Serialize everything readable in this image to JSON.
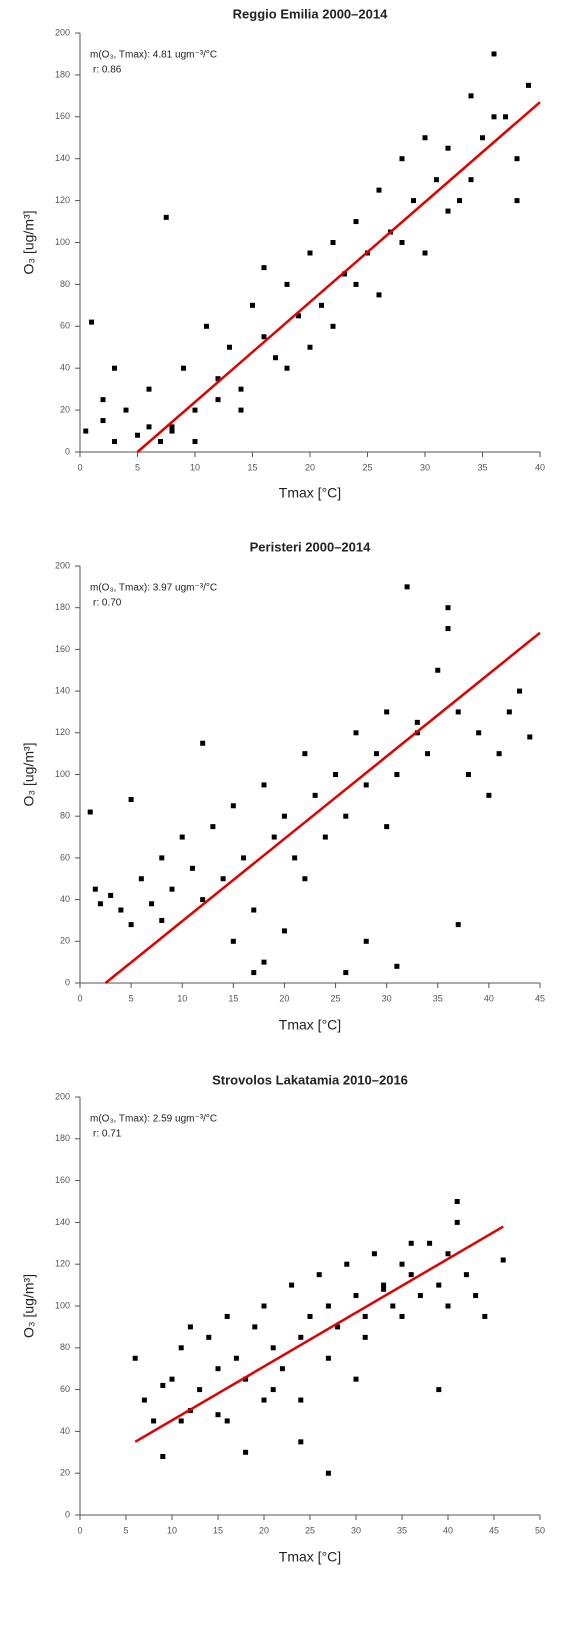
{
  "chart_data": [
    {
      "type": "scatter",
      "title": "Reggio Emilia 2000–2014",
      "xlabel": "Tmax [°C]",
      "ylabel": "O₃ [ug/m³]",
      "annotations": [
        "m(O₃, Tmax): 4.81 ugm⁻³/°C",
        "r: 0.86"
      ],
      "color": "#000000",
      "x": [
        0.5,
        1,
        2,
        3,
        4,
        5,
        6,
        7,
        8,
        9,
        10,
        11,
        12,
        13,
        14,
        15,
        16,
        17,
        18,
        19,
        20,
        21,
        22,
        23,
        24,
        25,
        26,
        27,
        28,
        29,
        30,
        31,
        32,
        33,
        34,
        35,
        36,
        37,
        38,
        39,
        2,
        6,
        10,
        14,
        18,
        22,
        26,
        30,
        34,
        38,
        3,
        8,
        12,
        16,
        20,
        24,
        28,
        32,
        36,
        7.5
      ],
      "values": [
        10,
        62,
        15,
        5,
        20,
        8,
        30,
        5,
        12,
        40,
        20,
        60,
        35,
        50,
        30,
        70,
        55,
        45,
        80,
        65,
        95,
        70,
        100,
        85,
        110,
        95,
        125,
        105,
        140,
        120,
        150,
        130,
        145,
        120,
        170,
        150,
        190,
        160,
        140,
        175,
        25,
        12,
        5,
        20,
        40,
        60,
        75,
        95,
        130,
        120,
        40,
        10,
        25,
        88,
        50,
        80,
        100,
        115,
        160,
        112
      ],
      "fit": {
        "x": [
          5,
          40
        ],
        "values": [
          0,
          167
        ],
        "color": "#e00000"
      },
      "xlim": [
        0,
        40
      ],
      "ylim": [
        0,
        200
      ],
      "xticks": [
        0,
        5,
        10,
        15,
        20,
        25,
        30,
        35,
        40
      ],
      "yticks": [
        0,
        20,
        40,
        60,
        80,
        100,
        120,
        140,
        160,
        180,
        200
      ]
    },
    {
      "type": "scatter",
      "title": "Peristeri 2000–2014",
      "xlabel": "Tmax [°C]",
      "ylabel": "O₃ [ug/m³]",
      "annotations": [
        "m(O₃, Tmax): 3.97 ugm⁻³/°C",
        "r: 0.70"
      ],
      "color": "#000000",
      "x": [
        1,
        1.5,
        2,
        3,
        4,
        5,
        6,
        7,
        8,
        9,
        10,
        11,
        12,
        13,
        14,
        15,
        16,
        17,
        18,
        19,
        20,
        21,
        22,
        23,
        24,
        25,
        26,
        27,
        28,
        29,
        30,
        31,
        32,
        33,
        34,
        35,
        36,
        37,
        38,
        39,
        40,
        41,
        42,
        43,
        44,
        5,
        8,
        12,
        15,
        18,
        22,
        26,
        30,
        33,
        36,
        20,
        28,
        37,
        31,
        17
      ],
      "values": [
        82,
        45,
        38,
        42,
        35,
        28,
        50,
        38,
        60,
        45,
        70,
        55,
        40,
        75,
        50,
        85,
        60,
        35,
        95,
        70,
        80,
        60,
        110,
        90,
        70,
        100,
        80,
        120,
        95,
        110,
        130,
        100,
        190,
        120,
        110,
        150,
        180,
        130,
        100,
        120,
        90,
        110,
        130,
        140,
        118,
        88,
        30,
        115,
        20,
        10,
        50,
        5,
        75,
        125,
        170,
        25,
        20,
        28,
        8,
        5
      ],
      "fit": {
        "x": [
          2.5,
          45
        ],
        "values": [
          0,
          168
        ],
        "color": "#e00000"
      },
      "xlim": [
        0,
        45
      ],
      "ylim": [
        0,
        200
      ],
      "xticks": [
        0,
        5,
        10,
        15,
        20,
        25,
        30,
        35,
        40,
        45
      ],
      "yticks": [
        0,
        20,
        40,
        60,
        80,
        100,
        120,
        140,
        160,
        180,
        200
      ]
    },
    {
      "type": "scatter",
      "title": "Strovolos Lakatamia 2010–2016",
      "xlabel": "Tmax [°C]",
      "ylabel": "O₃ [ug/m³]",
      "annotations": [
        "m(O₃, Tmax): 2.59 ugm⁻³/°C",
        "r: 0.71"
      ],
      "color": "#000000",
      "x": [
        6,
        7,
        8,
        9,
        10,
        11,
        12,
        13,
        14,
        15,
        16,
        17,
        18,
        19,
        20,
        21,
        22,
        23,
        24,
        25,
        26,
        27,
        28,
        29,
        30,
        31,
        32,
        33,
        34,
        35,
        36,
        37,
        38,
        39,
        40,
        41,
        42,
        43,
        44,
        46,
        9,
        12,
        15,
        18,
        21,
        24,
        27,
        30,
        33,
        36,
        39,
        41,
        27,
        35,
        11,
        20,
        31,
        40,
        16,
        24
      ],
      "values": [
        75,
        55,
        45,
        28,
        65,
        80,
        50,
        60,
        85,
        70,
        95,
        75,
        65,
        90,
        100,
        80,
        70,
        110,
        85,
        95,
        115,
        100,
        90,
        120,
        105,
        95,
        125,
        110,
        100,
        120,
        115,
        105,
        130,
        110,
        125,
        150,
        115,
        105,
        95,
        122,
        62,
        90,
        48,
        30,
        60,
        55,
        20,
        65,
        108,
        130,
        60,
        140,
        75,
        95,
        45,
        55,
        85,
        100,
        45,
        35
      ],
      "fit": {
        "x": [
          6,
          46
        ],
        "values": [
          35,
          138
        ],
        "color": "#e00000"
      },
      "xlim": [
        0,
        50
      ],
      "ylim": [
        0,
        200
      ],
      "xticks": [
        0,
        5,
        10,
        15,
        20,
        25,
        30,
        35,
        40,
        45,
        50
      ],
      "yticks": [
        0,
        20,
        40,
        60,
        80,
        100,
        120,
        140,
        160,
        180,
        200
      ]
    }
  ]
}
